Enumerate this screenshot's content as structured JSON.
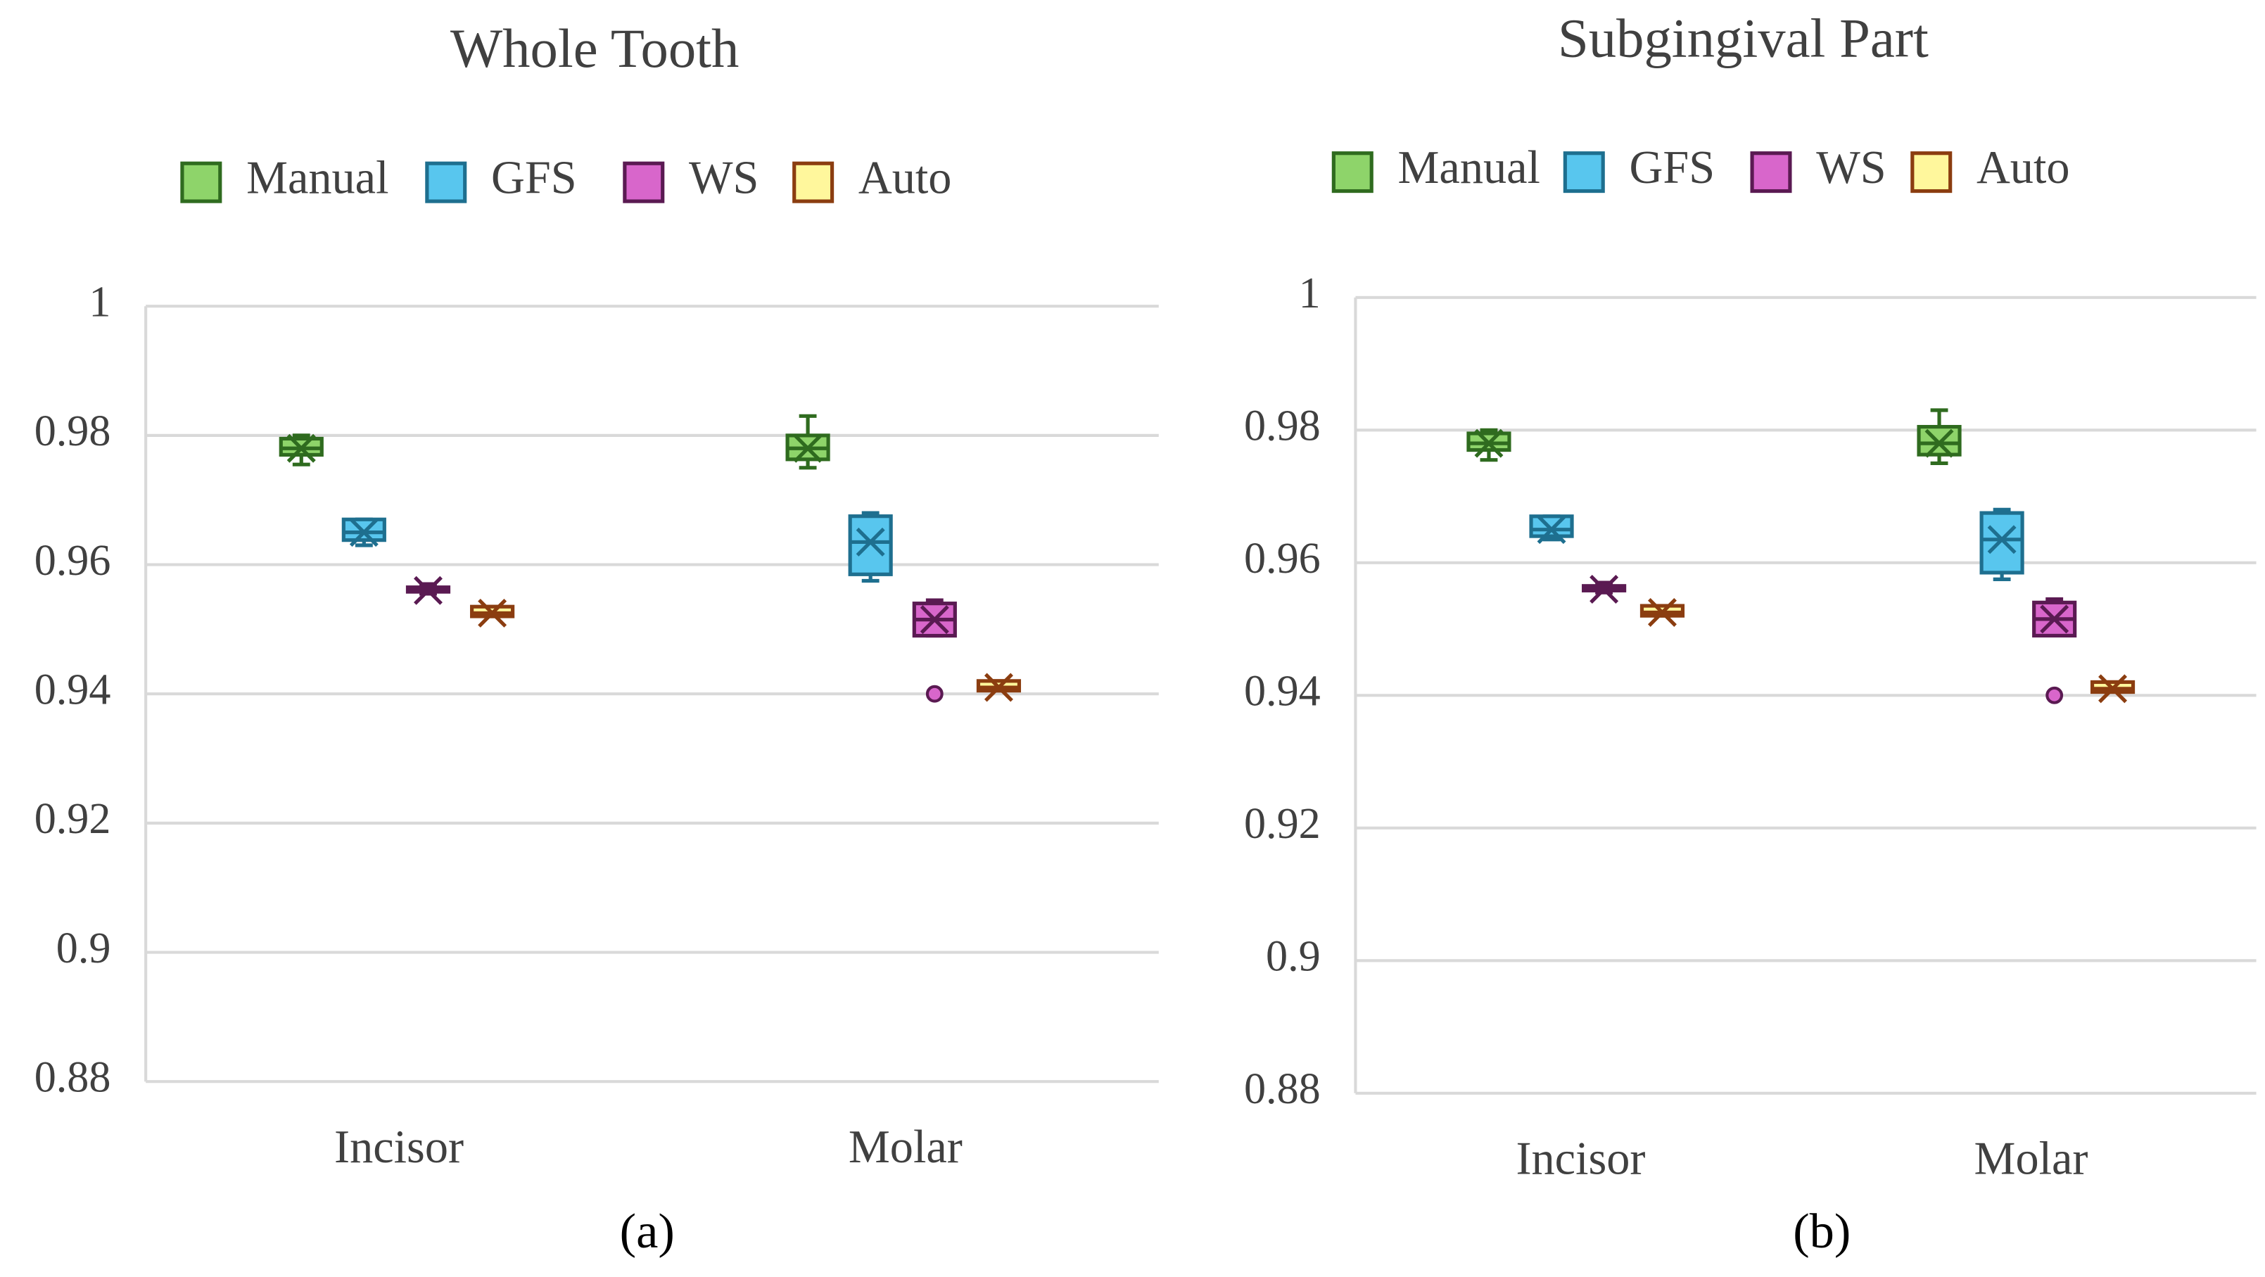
{
  "chart_data": [
    {
      "type": "box",
      "title": "Whole Tooth",
      "caption": "(a)",
      "categories": [
        "Incisor",
        "Molar"
      ],
      "ylim": [
        0.88,
        1
      ],
      "yticks": [
        0.88,
        0.9,
        0.92,
        0.94,
        0.96,
        0.98,
        1
      ],
      "grid": true,
      "legend": "top",
      "series": [
        {
          "name": "Manual",
          "color": "#8ed46a",
          "edge": "#2f6b1f",
          "boxes": [
            {
              "min": 0.9755,
              "q1": 0.977,
              "median": 0.978,
              "q3": 0.9795,
              "max": 0.98,
              "mean": 0.978,
              "outliers": []
            },
            {
              "min": 0.975,
              "q1": 0.9763,
              "median": 0.978,
              "q3": 0.98,
              "max": 0.983,
              "mean": 0.978,
              "outliers": []
            }
          ]
        },
        {
          "name": "GFS",
          "color": "#58c6ee",
          "edge": "#1e6f8f",
          "boxes": [
            {
              "min": 0.963,
              "q1": 0.9638,
              "median": 0.965,
              "q3": 0.967,
              "max": 0.967,
              "mean": 0.965,
              "outliers": []
            },
            {
              "min": 0.9575,
              "q1": 0.9585,
              "median": 0.9635,
              "q3": 0.9675,
              "max": 0.968,
              "mean": 0.9635,
              "outliers": []
            }
          ]
        },
        {
          "name": "WS",
          "color": "#d866cb",
          "edge": "#5a1a52",
          "boxes": [
            {
              "min": 0.9555,
              "q1": 0.9558,
              "median": 0.956,
              "q3": 0.9565,
              "max": 0.957,
              "mean": 0.956,
              "outliers": []
            },
            {
              "min": 0.949,
              "q1": 0.949,
              "median": 0.9515,
              "q3": 0.954,
              "max": 0.9545,
              "mean": 0.9515,
              "outliers": [
                0.94
              ]
            }
          ]
        },
        {
          "name": "Auto",
          "color": "#fff79c",
          "edge": "#8b3d10",
          "boxes": [
            {
              "min": 0.952,
              "q1": 0.952,
              "median": 0.9525,
              "q3": 0.9535,
              "max": 0.9535,
              "mean": 0.9525,
              "outliers": []
            },
            {
              "min": 0.9405,
              "q1": 0.9405,
              "median": 0.941,
              "q3": 0.942,
              "max": 0.942,
              "mean": 0.941,
              "outliers": []
            }
          ]
        }
      ]
    },
    {
      "type": "box",
      "title": "Subgingival Part",
      "caption": "(b)",
      "categories": [
        "Incisor",
        "Molar"
      ],
      "ylim": [
        0.88,
        1
      ],
      "yticks": [
        0.88,
        0.9,
        0.92,
        0.94,
        0.96,
        0.98,
        1
      ],
      "grid": true,
      "legend": "top",
      "series": [
        {
          "name": "Manual",
          "color": "#8ed46a",
          "edge": "#2f6b1f",
          "boxes": [
            {
              "min": 0.9755,
              "q1": 0.977,
              "median": 0.978,
              "q3": 0.9795,
              "max": 0.98,
              "mean": 0.978,
              "outliers": []
            },
            {
              "min": 0.975,
              "q1": 0.9763,
              "median": 0.978,
              "q3": 0.9805,
              "max": 0.983,
              "mean": 0.978,
              "outliers": []
            }
          ]
        },
        {
          "name": "GFS",
          "color": "#58c6ee",
          "edge": "#1e6f8f",
          "boxes": [
            {
              "min": 0.9635,
              "q1": 0.964,
              "median": 0.965,
              "q3": 0.967,
              "max": 0.967,
              "mean": 0.965,
              "outliers": []
            },
            {
              "min": 0.9575,
              "q1": 0.9585,
              "median": 0.9635,
              "q3": 0.9675,
              "max": 0.968,
              "mean": 0.9635,
              "outliers": []
            }
          ]
        },
        {
          "name": "WS",
          "color": "#d866cb",
          "edge": "#5a1a52",
          "boxes": [
            {
              "min": 0.9555,
              "q1": 0.9558,
              "median": 0.956,
              "q3": 0.9565,
              "max": 0.957,
              "mean": 0.956,
              "outliers": []
            },
            {
              "min": 0.949,
              "q1": 0.949,
              "median": 0.9515,
              "q3": 0.954,
              "max": 0.9545,
              "mean": 0.9515,
              "outliers": [
                0.94
              ]
            }
          ]
        },
        {
          "name": "Auto",
          "color": "#fff79c",
          "edge": "#8b3d10",
          "boxes": [
            {
              "min": 0.952,
              "q1": 0.952,
              "median": 0.9525,
              "q3": 0.9535,
              "max": 0.9535,
              "mean": 0.9525,
              "outliers": []
            },
            {
              "min": 0.9405,
              "q1": 0.9405,
              "median": 0.941,
              "q3": 0.942,
              "max": 0.942,
              "mean": 0.941,
              "outliers": []
            }
          ]
        }
      ]
    }
  ]
}
